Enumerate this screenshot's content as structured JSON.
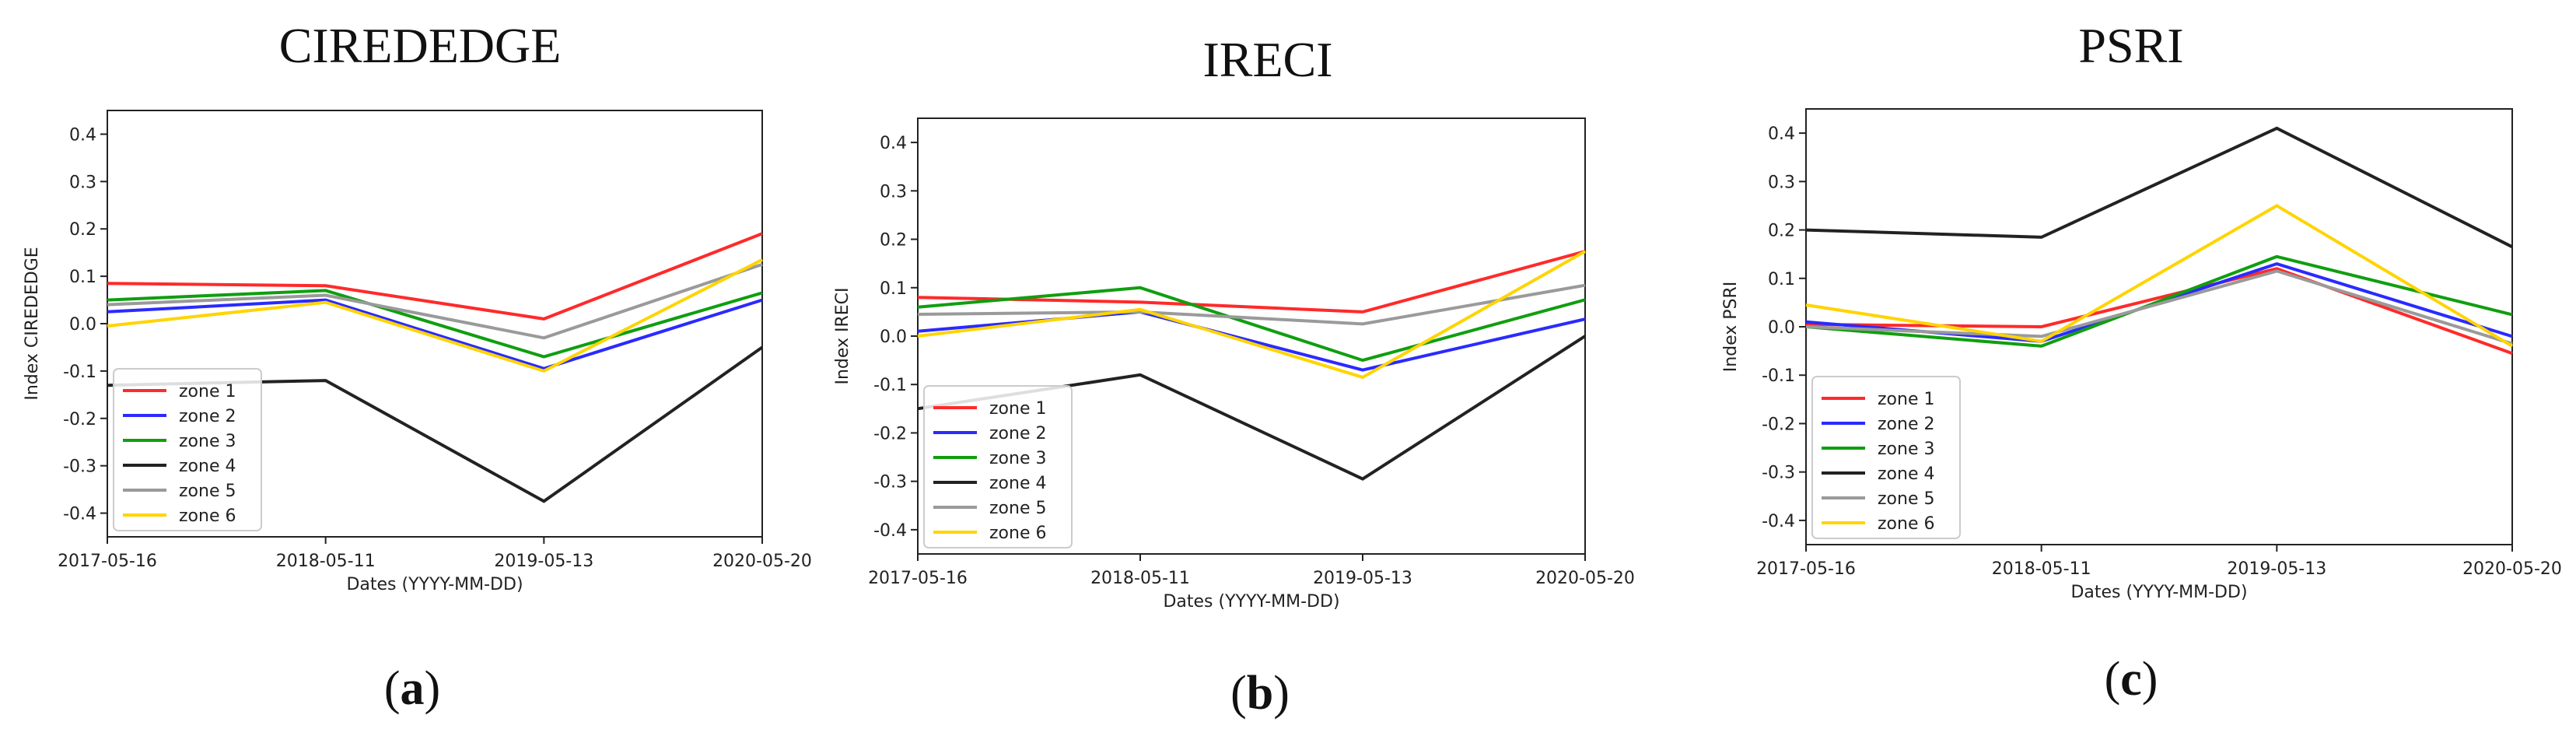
{
  "chart_data": [
    {
      "type": "line",
      "title": "CIREDEDGE",
      "caption": "a",
      "xlabel": "Dates (YYYY-MM-DD)",
      "ylabel": "Index CIREDEDGE",
      "categories": [
        "2017-05-16",
        "2018-05-11",
        "2019-05-13",
        "2020-05-20"
      ],
      "yticks": [
        "0.4",
        "0.3",
        "0.2",
        "0.1",
        "0.0",
        "-0.1",
        "-0.2",
        "-0.3",
        "-0.4"
      ],
      "ylim": [
        -0.45,
        0.45
      ],
      "legend_position": "lower-left",
      "series": [
        {
          "name": "zone 1",
          "color": "#ff2a2a",
          "values": [
            0.085,
            0.08,
            0.01,
            0.19
          ]
        },
        {
          "name": "zone 2",
          "color": "#2a2aff",
          "values": [
            0.025,
            0.05,
            -0.095,
            0.05
          ]
        },
        {
          "name": "zone 3",
          "color": "#109e10",
          "values": [
            0.05,
            0.07,
            -0.07,
            0.065
          ]
        },
        {
          "name": "zone 4",
          "color": "#222222",
          "values": [
            -0.13,
            -0.12,
            -0.375,
            -0.05
          ]
        },
        {
          "name": "zone 5",
          "color": "#9a9a9a",
          "values": [
            0.04,
            0.06,
            -0.03,
            0.125
          ]
        },
        {
          "name": "zone 6",
          "color": "#ffd400",
          "values": [
            -0.005,
            0.045,
            -0.1,
            0.135
          ]
        }
      ]
    },
    {
      "type": "line",
      "title": "IRECI",
      "caption": "b",
      "xlabel": "Dates (YYYY-MM-DD)",
      "ylabel": "Index IRECI",
      "categories": [
        "2017-05-16",
        "2018-05-11",
        "2019-05-13",
        "2020-05-20"
      ],
      "yticks": [
        "0.4",
        "0.3",
        "0.2",
        "0.1",
        "0.0",
        "-0.1",
        "-0.2",
        "-0.3",
        "-0.4"
      ],
      "ylim": [
        -0.45,
        0.45
      ],
      "legend_position": "lower-left",
      "series": [
        {
          "name": "zone 1",
          "color": "#ff2a2a",
          "values": [
            0.08,
            0.07,
            0.05,
            0.175
          ]
        },
        {
          "name": "zone 2",
          "color": "#2a2aff",
          "values": [
            0.01,
            0.05,
            -0.07,
            0.035
          ]
        },
        {
          "name": "zone 3",
          "color": "#109e10",
          "values": [
            0.06,
            0.1,
            -0.05,
            0.075
          ]
        },
        {
          "name": "zone 4",
          "color": "#222222",
          "values": [
            -0.15,
            -0.08,
            -0.295,
            0.0
          ]
        },
        {
          "name": "zone 5",
          "color": "#9a9a9a",
          "values": [
            0.045,
            0.05,
            0.025,
            0.105
          ]
        },
        {
          "name": "zone 6",
          "color": "#ffd400",
          "values": [
            0.0,
            0.055,
            -0.085,
            0.175
          ]
        }
      ]
    },
    {
      "type": "line",
      "title": "PSRI",
      "caption": "c",
      "xlabel": "Dates (YYYY-MM-DD)",
      "ylabel": "Index PSRI",
      "categories": [
        "2017-05-16",
        "2018-05-11",
        "2019-05-13",
        "2020-05-20"
      ],
      "yticks": [
        "0.4",
        "0.3",
        "0.2",
        "0.1",
        "0.0",
        "-0.1",
        "-0.2",
        "-0.3",
        "-0.4"
      ],
      "ylim": [
        -0.45,
        0.45
      ],
      "legend_position": "lower-left",
      "series": [
        {
          "name": "zone 1",
          "color": "#ff2a2a",
          "values": [
            0.005,
            0.0,
            0.12,
            -0.055
          ]
        },
        {
          "name": "zone 2",
          "color": "#2a2aff",
          "values": [
            0.01,
            -0.03,
            0.13,
            -0.02
          ]
        },
        {
          "name": "zone 3",
          "color": "#109e10",
          "values": [
            0.0,
            -0.04,
            0.145,
            0.025
          ]
        },
        {
          "name": "zone 4",
          "color": "#222222",
          "values": [
            0.2,
            0.185,
            0.41,
            0.165
          ]
        },
        {
          "name": "zone 5",
          "color": "#9a9a9a",
          "values": [
            0.0,
            -0.02,
            0.115,
            -0.035
          ]
        },
        {
          "name": "zone 6",
          "color": "#ffd400",
          "values": [
            0.045,
            -0.03,
            0.25,
            -0.04
          ]
        }
      ]
    }
  ]
}
